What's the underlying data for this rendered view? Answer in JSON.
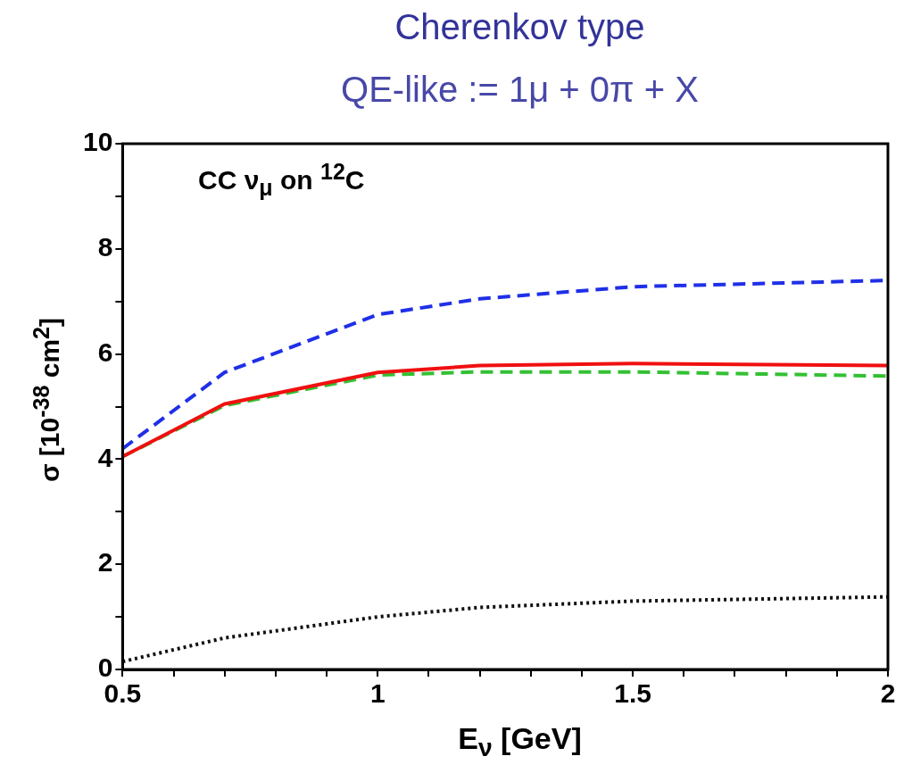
{
  "chart_data": {
    "type": "line",
    "title": "Cherenkov type",
    "subtitle": "QE-like := 1μ + 0π + X",
    "xlabel": "E$_{ν}$ [GeV]",
    "ylabel": "σ [10$^{-38}$ cm$^{2}$]",
    "annotations": [
      "CC ν$_{μ}$ on $^{12}$C"
    ],
    "x": [
      0.5,
      0.7,
      1.0,
      1.2,
      1.5,
      2.0
    ],
    "series": [
      {
        "color": "#1f2fe8",
        "line_style": "dashed",
        "values": [
          4.2,
          5.65,
          6.75,
          7.05,
          7.28,
          7.4
        ]
      },
      {
        "color": "#f01010",
        "line_style": "solid",
        "values": [
          4.05,
          5.05,
          5.65,
          5.78,
          5.82,
          5.78
        ]
      },
      {
        "color": "#33c033",
        "line_style": "dashed",
        "values": [
          4.05,
          5.02,
          5.6,
          5.66,
          5.66,
          5.58
        ]
      },
      {
        "color": "#111111",
        "line_style": "dotted",
        "values": [
          0.15,
          0.6,
          1.0,
          1.18,
          1.3,
          1.38
        ]
      }
    ],
    "xlim": [
      0.5,
      2
    ],
    "xticks": [
      0.5,
      {
        "value": 0.6,
        "label": null
      },
      {
        "value": 0.7,
        "label": null
      },
      {
        "value": 0.8,
        "label": null
      },
      {
        "value": 0.9,
        "label": null
      },
      1,
      {
        "value": 1.1,
        "label": null
      },
      {
        "value": 1.2,
        "label": null
      },
      {
        "value": 1.3,
        "label": null
      },
      {
        "value": 1.4,
        "label": null
      },
      1.5,
      {
        "value": 1.6,
        "label": null
      },
      {
        "value": 1.7,
        "label": null
      },
      {
        "value": 1.8,
        "label": null
      },
      {
        "value": 1.9,
        "label": null
      },
      2
    ],
    "ylim": [
      0,
      10
    ],
    "yticks": [
      0,
      {
        "value": 1,
        "label": null
      },
      2,
      {
        "value": 3,
        "label": null
      },
      4,
      {
        "value": 5,
        "label": null
      },
      6,
      {
        "value": 7,
        "label": null
      },
      8,
      {
        "value": 9,
        "label": null
      },
      10
    ],
    "grid": false,
    "legend": false,
    "marker": "none"
  }
}
